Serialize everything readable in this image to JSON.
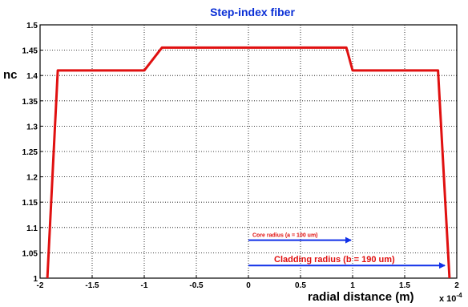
{
  "chart_data": {
    "type": "line",
    "title": "Step-index fiber",
    "xlabel": "radial distance (m)",
    "x_multiplier": "x 10",
    "x_multiplier_exponent": "-4",
    "ylabel": "nc",
    "xlim": [
      -2,
      2
    ],
    "ylim": [
      1,
      1.5
    ],
    "x_ticks": [
      -2,
      -1.5,
      -1,
      -0.5,
      0,
      0.5,
      1,
      1.5,
      2
    ],
    "x_tick_labels": [
      "-2",
      "-1.5",
      "-1",
      "-0.5",
      "0",
      "0.5",
      "1",
      "1.5",
      "2"
    ],
    "y_ticks": [
      1,
      1.05,
      1.1,
      1.15,
      1.2,
      1.25,
      1.3,
      1.35,
      1.4,
      1.45,
      1.5
    ],
    "y_tick_labels": [
      "1",
      "1.05",
      "1.1",
      "1.15",
      "1.2",
      "1.25",
      "1.3",
      "1.35",
      "1.4",
      "1.45",
      "1.5"
    ],
    "grid": true,
    "series": [
      {
        "color": "#e01010",
        "x": [
          -1.93,
          -1.83,
          -1.0,
          -0.83,
          0.94,
          1.0,
          1.82,
          1.93
        ],
        "y": [
          1.0,
          1.41,
          1.41,
          1.455,
          1.455,
          1.41,
          1.41,
          1.0
        ]
      }
    ],
    "annotations": [
      {
        "text": "Core radius (a = 100 um)",
        "arrow_x": [
          0,
          1.0
        ],
        "arrow_y": 1.075,
        "color": "#1030e8",
        "text_color": "#e01010"
      },
      {
        "text": "Cladding radius (b = 190 um)",
        "arrow_x": [
          0,
          1.9
        ],
        "arrow_y": 1.025,
        "color": "#1030e8",
        "text_color": "#e01010"
      }
    ]
  }
}
